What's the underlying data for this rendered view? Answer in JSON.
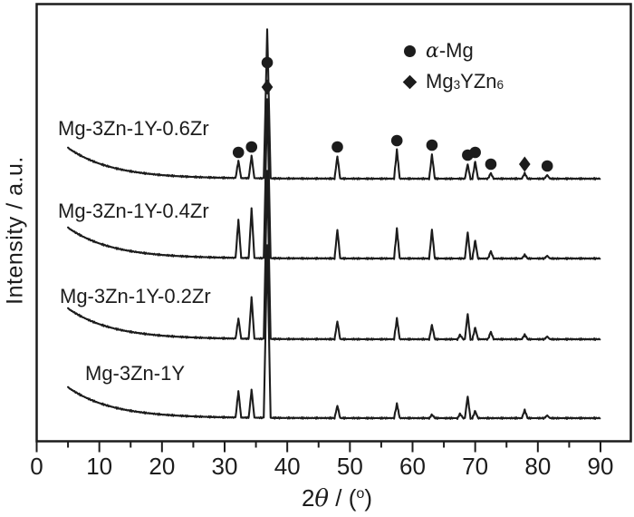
{
  "figure": {
    "bg": "#ffffff",
    "ink": "#1c1c1c"
  },
  "chart_data": {
    "type": "line",
    "xlabel": "2θ / (°)",
    "xlabel_parts": {
      "pre": "2",
      "theta": "θ",
      "mid": " / (",
      "deg": "o",
      "end": ")"
    },
    "ylabel": "Intensity / a.u.",
    "x_axis": {
      "min": 0,
      "max": 95,
      "major_ticks": [
        0,
        10,
        20,
        30,
        40,
        50,
        60,
        70,
        80,
        90
      ],
      "minor_ticks": [
        5,
        15,
        25,
        35,
        45,
        55,
        65,
        75,
        85
      ]
    },
    "y_axis": {
      "units": "a.u.",
      "ticks": "none"
    },
    "legend": {
      "entries": [
        {
          "marker": "circle",
          "label": "α-Mg"
        },
        {
          "marker": "diamond",
          "label": "Mg3YZn6"
        }
      ],
      "alpha_mg": {
        "sym": "α",
        "text": "-Mg"
      },
      "mg3yzn6": {
        "p1": "Mg",
        "s1": "3",
        "p2": "YZn",
        "s2": "6"
      }
    },
    "background_decay": {
      "start_deg": 5,
      "rise": 34,
      "tau": 7
    },
    "series": [
      {
        "label": "Mg-3Zn-1Y-0.6Zr",
        "baseline": 197,
        "peaks": [
          [
            32.2,
            19
          ],
          [
            34.3,
            25
          ],
          [
            36.8,
            164
          ],
          [
            48.0,
            25
          ],
          [
            57.5,
            32
          ],
          [
            63.1,
            27
          ],
          [
            68.8,
            16
          ],
          [
            70.0,
            19
          ],
          [
            72.5,
            6
          ],
          [
            77.9,
            6
          ],
          [
            81.5,
            4
          ]
        ],
        "markers": [
          {
            "shape": "circle",
            "deg": 32.2
          },
          {
            "shape": "circle",
            "deg": 34.3
          },
          {
            "shape": "circle",
            "deg": 36.8,
            "y": 69
          },
          {
            "shape": "diamond",
            "deg": 36.8,
            "y": 96
          },
          {
            "shape": "circle",
            "deg": 48.0
          },
          {
            "shape": "circle",
            "deg": 57.5
          },
          {
            "shape": "circle",
            "deg": 63.1
          },
          {
            "shape": "circle",
            "deg": 68.8
          },
          {
            "shape": "circle",
            "deg": 70.0
          },
          {
            "shape": "circle",
            "deg": 72.5
          },
          {
            "shape": "diamond",
            "deg": 77.9
          },
          {
            "shape": "circle",
            "deg": 81.5
          }
        ]
      },
      {
        "label": "Mg-3Zn-1Y-0.4Zr",
        "baseline": 285,
        "peaks": [
          [
            32.2,
            42
          ],
          [
            34.3,
            55
          ],
          [
            36.8,
            175
          ],
          [
            48.0,
            32
          ],
          [
            57.5,
            33
          ],
          [
            63.1,
            32
          ],
          [
            68.8,
            29
          ],
          [
            70.0,
            20
          ],
          [
            72.5,
            8
          ],
          [
            77.9,
            4
          ],
          [
            81.5,
            3
          ]
        ]
      },
      {
        "label": "Mg-3Zn-1Y-0.2Zr",
        "baseline": 374,
        "peaks": [
          [
            32.2,
            22
          ],
          [
            34.3,
            46
          ],
          [
            36.8,
            185
          ],
          [
            48.0,
            20
          ],
          [
            57.5,
            23
          ],
          [
            63.1,
            16
          ],
          [
            67.6,
            5
          ],
          [
            68.8,
            28
          ],
          [
            70.0,
            13
          ],
          [
            72.5,
            8
          ],
          [
            77.9,
            5
          ],
          [
            81.5,
            3
          ]
        ]
      },
      {
        "label": "Mg-3Zn-1Y",
        "baseline": 461,
        "peaks": [
          [
            32.2,
            29
          ],
          [
            34.3,
            31
          ],
          [
            36.8,
            190
          ],
          [
            48.0,
            14
          ],
          [
            57.5,
            16
          ],
          [
            63.1,
            4
          ],
          [
            67.6,
            5
          ],
          [
            68.8,
            24
          ],
          [
            70.0,
            8
          ],
          [
            77.9,
            9
          ],
          [
            81.5,
            3
          ]
        ]
      }
    ]
  }
}
